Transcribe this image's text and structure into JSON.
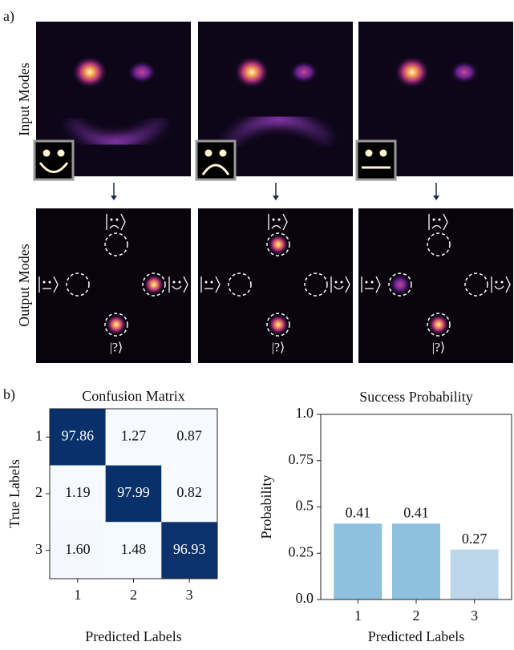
{
  "panel_a": {
    "label": "a)",
    "input_label": "Input Modes",
    "output_label": "Output Modes",
    "unknown_ket": "|?⟩"
  },
  "panel_b": {
    "label": "b)"
  },
  "chart_data": [
    {
      "type": "heatmap",
      "title": "Confusion Matrix",
      "x_label": "Predicted Labels",
      "y_label": "True Labels",
      "x_categories": [
        "1",
        "2",
        "3"
      ],
      "y_categories": [
        "1",
        "2",
        "3"
      ],
      "values": [
        [
          97.86,
          1.27,
          0.87
        ],
        [
          1.19,
          97.99,
          0.82
        ],
        [
          1.6,
          1.48,
          96.93
        ]
      ],
      "value_labels": [
        [
          "97.86",
          "1.27",
          "0.87"
        ],
        [
          "1.19",
          "97.99",
          "0.82"
        ],
        [
          "1.60",
          "1.48",
          "96.93"
        ]
      ],
      "colors": [
        "#f7fbff",
        "#08306b"
      ]
    },
    {
      "type": "bar",
      "title": "Success Probability",
      "x_label": "Predicted Labels",
      "y_label": "Probability",
      "categories": [
        "1",
        "2",
        "3"
      ],
      "values": [
        0.41,
        0.41,
        0.27
      ],
      "colors": [
        "#8fc1de",
        "#8fc1de",
        "#bcd7ea"
      ],
      "ylim": [
        0,
        1
      ],
      "yticks": [
        {
          "value": 0,
          "label": "0.0"
        },
        0.25,
        0.5,
        0.75,
        {
          "value": 1,
          "label": "1.0"
        }
      ]
    }
  ]
}
